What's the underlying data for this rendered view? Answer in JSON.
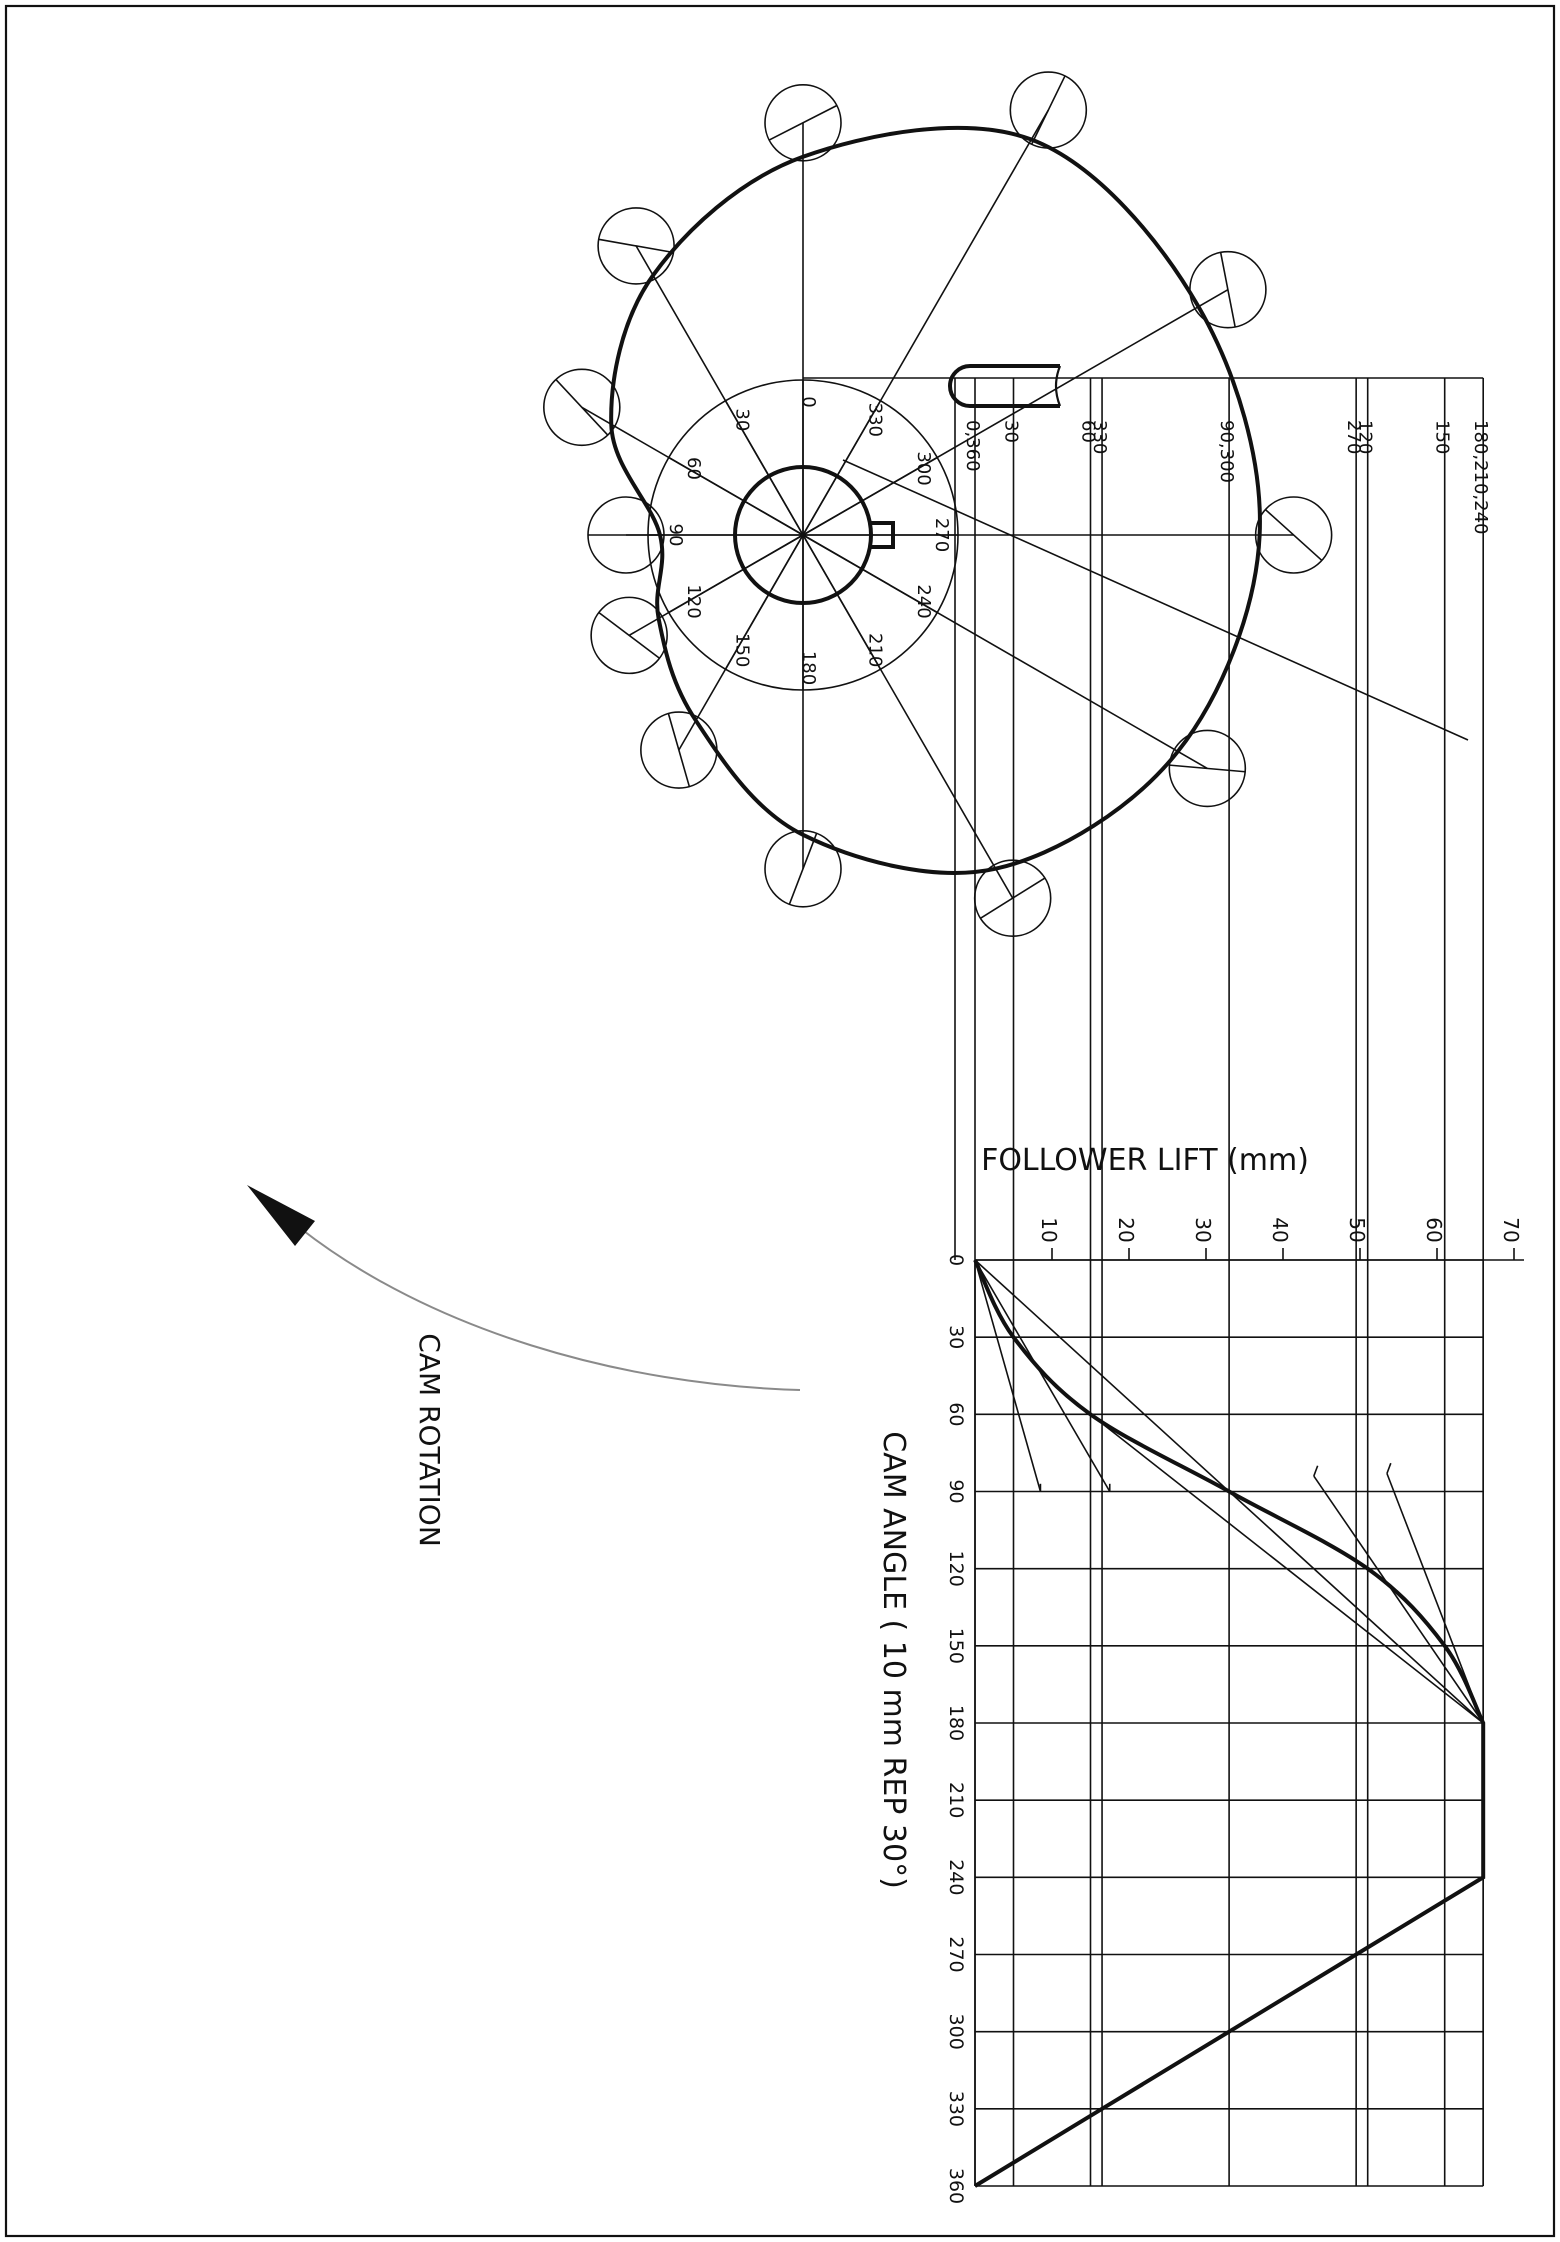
{
  "drawing": {
    "follower_lift_label": "FOLLOWER LIFT (mm)",
    "cam_angle_label": "CAM ANGLE ( 10 mm REP 30°)",
    "cam_rotation_label": "CAM ROTATION",
    "lift_ticks": [
      "10",
      "20",
      "30",
      "40",
      "50",
      "60",
      "70"
    ],
    "angle_ticks": [
      "0",
      "30",
      "60",
      "90",
      "120",
      "150",
      "180",
      "210",
      "240",
      "270",
      "300",
      "330",
      "360"
    ],
    "base_circle_labels": [
      "0",
      "30",
      "60",
      "90",
      "120",
      "150",
      "180",
      "210",
      "240",
      "270",
      "300",
      "330"
    ],
    "projection_labels": [
      "0,360",
      "30",
      "60",
      "330",
      "90,300",
      "270",
      "120",
      "150",
      "180,210,240"
    ],
    "colors": {
      "ink": "#111111",
      "arrow_arc": "#8a8a8a",
      "background": "#ffffff"
    }
  },
  "chart_data": {
    "type": "line",
    "title": "",
    "xlabel": "CAM ANGLE ( 10 mm REP 30°)",
    "ylabel": "FOLLOWER LIFT (mm)",
    "xlim": [
      0,
      360
    ],
    "ylim": [
      0,
      70
    ],
    "x": [
      0,
      30,
      60,
      90,
      120,
      150,
      180,
      210,
      240,
      270,
      300,
      330,
      360
    ],
    "series": [
      {
        "values": [
          0,
          5,
          15,
          33,
          51,
          61,
          66,
          66,
          66,
          49.5,
          33,
          16.5,
          0
        ]
      }
    ]
  }
}
